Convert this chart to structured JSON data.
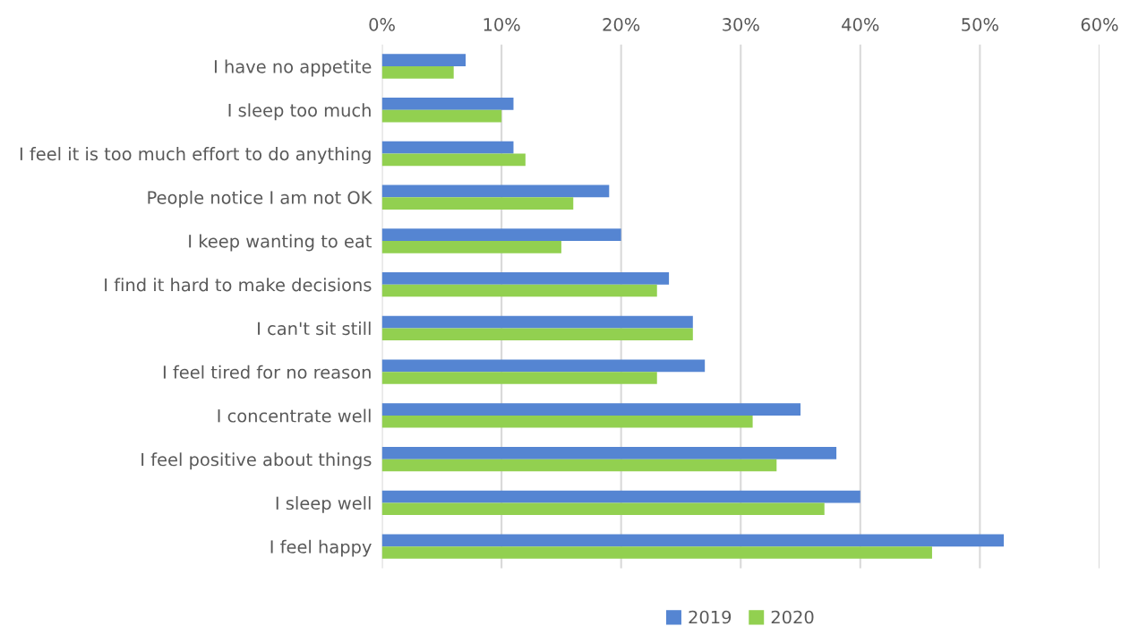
{
  "chart_data": {
    "type": "bar",
    "orientation": "horizontal",
    "categories": [
      "I have no appetite",
      "I sleep too much",
      "I feel it is too much effort to do anything",
      "People notice I am not OK",
      "I keep wanting to eat",
      "I find it hard to make decisions",
      "I can't sit still",
      "I feel tired for no reason",
      "I concentrate well",
      "I feel positive about things",
      "I sleep well",
      "I feel happy"
    ],
    "series": [
      {
        "name": "2019",
        "color": "#5585d2",
        "values": [
          7,
          11,
          11,
          19,
          20,
          24,
          26,
          27,
          35,
          38,
          40,
          52
        ]
      },
      {
        "name": "2020",
        "color": "#92d050",
        "values": [
          6,
          10,
          12,
          16,
          15,
          23,
          26,
          23,
          31,
          33,
          37,
          46
        ]
      }
    ],
    "xlim": [
      0,
      60
    ],
    "xticks": [
      {
        "value": 0,
        "label": "0%"
      },
      {
        "value": 10,
        "label": "10%"
      },
      {
        "value": 20,
        "label": "20%"
      },
      {
        "value": 30,
        "label": "30%"
      },
      {
        "value": 40,
        "label": "40%"
      },
      {
        "value": 50,
        "label": "50%"
      },
      {
        "value": 60,
        "label": "60%"
      }
    ],
    "grid": "x",
    "legend": "bottom"
  }
}
